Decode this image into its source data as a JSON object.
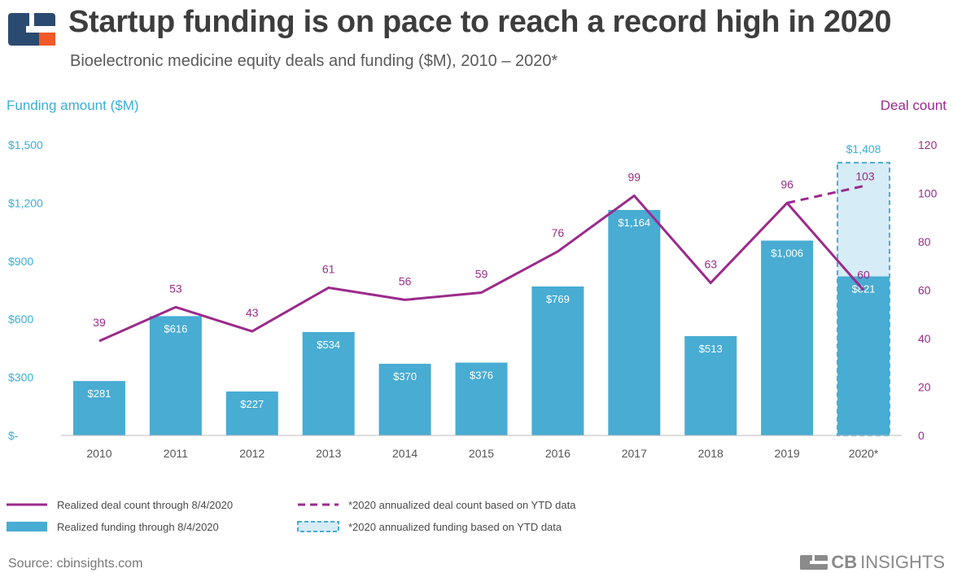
{
  "header": {
    "title": "Startup funding is on pace to reach a record high in 2020",
    "subtitle": "Bioelectronic medicine equity deals and funding ($M), 2010 – 2020*"
  },
  "footer": {
    "source": "Source: cbinsights.com",
    "brand_bold": "CB",
    "brand_rest": "INSIGHTS"
  },
  "colors": {
    "bar": "#48acd3",
    "projected_fill": "#d6ecf7",
    "projected_border": "#48acd3",
    "line": "#9b2a8c",
    "left_axis": "#3aaed8",
    "right_axis": "#9b2a8c",
    "logo_blue": "#2b4a6f",
    "logo_orange": "#f05a28"
  },
  "icons": {
    "logo": "cb-insights-logo",
    "brand": "cb-insights-wordmark"
  },
  "chart_data": {
    "type": "bar",
    "categories": [
      "2010",
      "2011",
      "2012",
      "2013",
      "2014",
      "2015",
      "2016",
      "2017",
      "2018",
      "2019",
      "2020*"
    ],
    "y_left_label": "Funding amount ($M)",
    "y_right_label": "Deal count",
    "y_left_ticks": [
      "$-",
      "$300",
      "$600",
      "$900",
      "$1,200",
      "$1,500"
    ],
    "y_left_tick_values": [
      0,
      300,
      600,
      900,
      1200,
      1500
    ],
    "y_right_ticks": [
      "0",
      "20",
      "40",
      "60",
      "80",
      "100",
      "120"
    ],
    "y_right_tick_values": [
      0,
      20,
      40,
      60,
      80,
      100,
      120
    ],
    "ylim_left": [
      0,
      1500
    ],
    "ylim_right": [
      0,
      120
    ],
    "grid": false,
    "series": [
      {
        "name": "Realized funding through 8/4/2020",
        "kind": "bar",
        "axis": "left",
        "values": [
          281,
          616,
          227,
          534,
          370,
          376,
          769,
          1164,
          513,
          1006,
          821
        ],
        "labels": [
          "$281",
          "$616",
          "$227",
          "$534",
          "$370",
          "$376",
          "$769",
          "$1,164",
          "$513",
          "$1,006",
          "$821"
        ]
      },
      {
        "name": "*2020 annualized funding based on YTD data",
        "kind": "bar-projected",
        "axis": "left",
        "category": "2020*",
        "value": 1408,
        "label": "$1,408"
      },
      {
        "name": "Realized deal count through 8/4/2020",
        "kind": "line",
        "axis": "right",
        "values": [
          39,
          53,
          43,
          61,
          56,
          59,
          76,
          99,
          63,
          96,
          60
        ],
        "labels": [
          "39",
          "53",
          "43",
          "61",
          "56",
          "59",
          "76",
          "99",
          "63",
          "96",
          "60"
        ]
      },
      {
        "name": "*2020 annualized deal count based on YTD data",
        "kind": "line-dashed",
        "axis": "right",
        "from_category": "2019",
        "from_value": 96,
        "to_category": "2020*",
        "value": 103,
        "label": "103"
      }
    ],
    "legend_position": "bottom"
  }
}
